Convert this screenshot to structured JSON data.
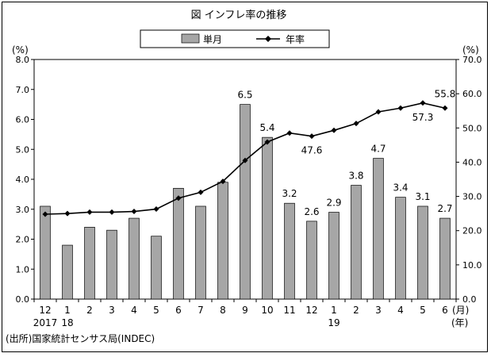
{
  "chart_data": {
    "type": "bar+line",
    "title": "図 インフレ率の推移",
    "legend": {
      "placement": "top-center",
      "bar_label": "単月",
      "line_label": "年率"
    },
    "x_month_labels": [
      "12",
      "1",
      "2",
      "3",
      "4",
      "5",
      "6",
      "7",
      "8",
      "9",
      "10",
      "11",
      "12",
      "1",
      "2",
      "3",
      "4",
      "5",
      "6"
    ],
    "x_year_labels": [
      "2017",
      "18",
      "",
      "",
      "",
      "",
      "",
      "",
      "",
      "",
      "",
      "",
      "",
      "19",
      "",
      "",
      "",
      "",
      ""
    ],
    "x_unit_month": "(月)",
    "x_unit_year": "(年)",
    "left_axis": {
      "unit": "(%)",
      "ylim": [
        0,
        8
      ],
      "ticks": [
        "0.0",
        "1.0",
        "2.0",
        "3.0",
        "4.0",
        "5.0",
        "6.0",
        "7.0",
        "8.0"
      ]
    },
    "right_axis": {
      "unit": "(%)",
      "ylim": [
        0,
        70
      ],
      "ticks": [
        "0.0",
        "10.0",
        "20.0",
        "30.0",
        "40.0",
        "50.0",
        "60.0",
        "70.0"
      ]
    },
    "series": [
      {
        "name": "単月",
        "kind": "bar",
        "axis": "left",
        "color": "#a6a6a6",
        "values": [
          3.1,
          1.8,
          2.4,
          2.3,
          2.7,
          2.1,
          3.7,
          3.1,
          3.9,
          6.5,
          5.4,
          3.2,
          2.6,
          2.9,
          3.8,
          4.7,
          3.4,
          3.1,
          2.7
        ],
        "labels": [
          "",
          "",
          "",
          "",
          "",
          "",
          "",
          "",
          "",
          "6.5",
          "5.4",
          "3.2",
          "2.6",
          "2.9",
          "3.8",
          "4.7",
          "3.4",
          "3.1",
          "2.7"
        ]
      },
      {
        "name": "年率",
        "kind": "line",
        "axis": "right",
        "color": "#000000",
        "values": [
          24.8,
          25.0,
          25.4,
          25.4,
          25.6,
          26.3,
          29.5,
          31.2,
          34.4,
          40.5,
          45.9,
          48.5,
          47.6,
          49.3,
          51.3,
          54.7,
          55.8,
          57.3,
          55.8
        ],
        "labels": [
          "",
          "",
          "",
          "",
          "",
          "",
          "",
          "",
          "",
          "",
          "",
          "",
          "47.6",
          "",
          "",
          "",
          "",
          "57.3",
          "55.8"
        ]
      }
    ],
    "source": "(出所)国家統計センサス局(INDEC)"
  }
}
